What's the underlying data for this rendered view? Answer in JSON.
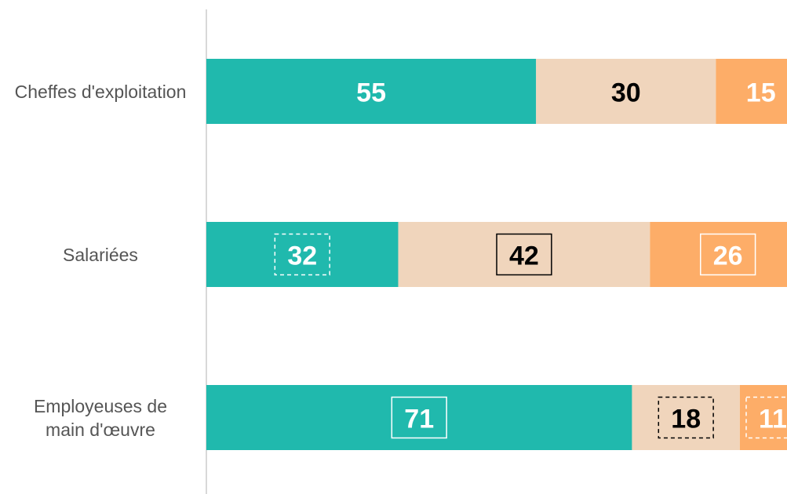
{
  "chart_data": {
    "type": "stacked-bar-horizontal",
    "categories": [
      "Cheffes d'exploitation",
      "Salariées",
      "Employeuses de main d'œuvre"
    ],
    "series": [
      {
        "color": "#20b9ad",
        "label_color": "#ffffff",
        "values": [
          55,
          32,
          71
        ],
        "label_box": [
          null,
          "dashed",
          "solid"
        ]
      },
      {
        "color": "#f0d5bc",
        "label_color": "#000000",
        "values": [
          30,
          42,
          18
        ],
        "label_box": [
          null,
          "solid",
          "dashed"
        ]
      },
      {
        "color": "#fdad68",
        "label_color": "#ffffff",
        "values": [
          15,
          26,
          11
        ],
        "label_box": [
          null,
          "solid",
          "dashed"
        ]
      }
    ],
    "xlim": [
      0,
      100
    ]
  }
}
